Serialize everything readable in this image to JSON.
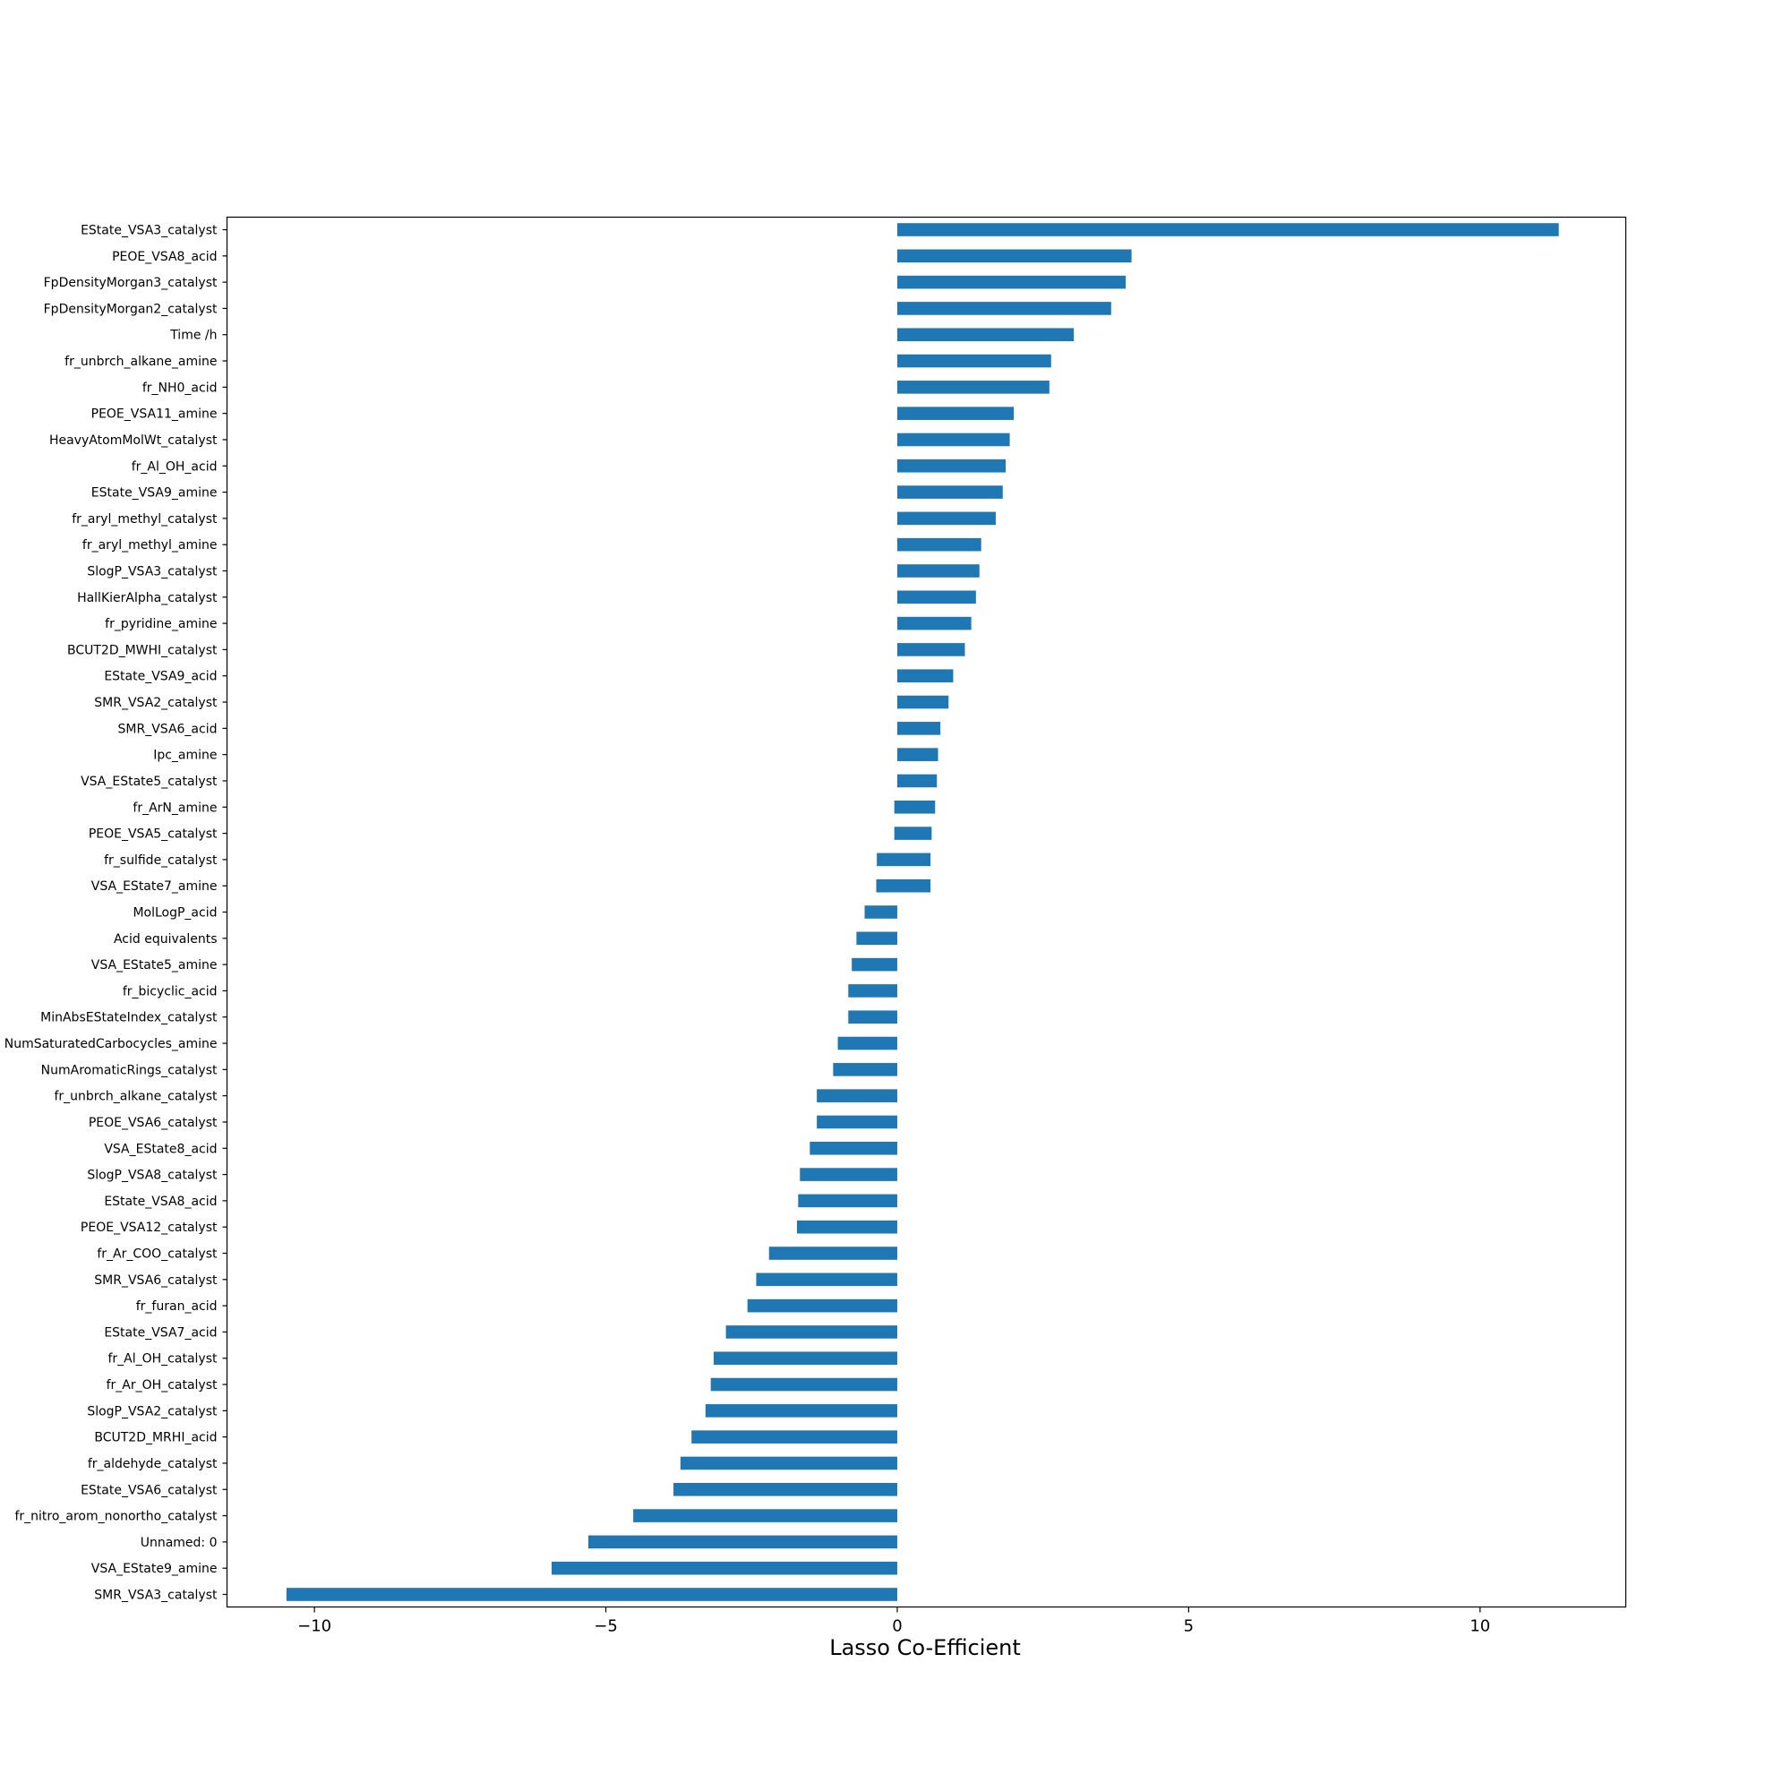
{
  "chart_data": {
    "type": "bar",
    "orientation": "horizontal",
    "title": "",
    "xlabel": "Lasso Co-Efficient",
    "ylabel": "",
    "xlim": [
      -11.5,
      12.5
    ],
    "xticks": [
      -10,
      -5,
      0,
      5,
      10
    ],
    "xtick_labels": [
      "−10",
      "−5",
      "0",
      "5",
      "10"
    ],
    "grid": false,
    "bar_color": "#1f77b4",
    "bars": [
      {
        "label": "EState_VSA3_catalyst",
        "start": 0,
        "end": 11.35
      },
      {
        "label": "PEOE_VSA8_acid",
        "start": 0,
        "end": 4.02
      },
      {
        "label": "FpDensityMorgan3_catalyst",
        "start": 0,
        "end": 3.92
      },
      {
        "label": "FpDensityMorgan2_catalyst",
        "start": 0,
        "end": 3.67
      },
      {
        "label": "Time /h",
        "start": 0,
        "end": 3.03
      },
      {
        "label": "fr_unbrch_alkane_amine",
        "start": 0,
        "end": 2.64
      },
      {
        "label": "fr_NH0_acid",
        "start": 0,
        "end": 2.61
      },
      {
        "label": "PEOE_VSA11_amine",
        "start": 0,
        "end": 2.0
      },
      {
        "label": "HeavyAtomMolWt_catalyst",
        "start": 0,
        "end": 1.93
      },
      {
        "label": "fr_Al_OH_acid",
        "start": 0,
        "end": 1.86
      },
      {
        "label": "EState_VSA9_amine",
        "start": 0,
        "end": 1.81
      },
      {
        "label": "fr_aryl_methyl_catalyst",
        "start": 0,
        "end": 1.69
      },
      {
        "label": "fr_aryl_methyl_amine",
        "start": 0,
        "end": 1.44
      },
      {
        "label": "SlogP_VSA3_catalyst",
        "start": 0,
        "end": 1.41
      },
      {
        "label": "HallKierAlpha_catalyst",
        "start": 0,
        "end": 1.35
      },
      {
        "label": "fr_pyridine_amine",
        "start": 0,
        "end": 1.27
      },
      {
        "label": "BCUT2D_MWHI_catalyst",
        "start": 0,
        "end": 1.16
      },
      {
        "label": "EState_VSA9_acid",
        "start": 0,
        "end": 0.96
      },
      {
        "label": "SMR_VSA2_catalyst",
        "start": 0,
        "end": 0.88
      },
      {
        "label": "SMR_VSA6_acid",
        "start": 0,
        "end": 0.74
      },
      {
        "label": "Ipc_amine",
        "start": 0,
        "end": 0.7
      },
      {
        "label": "VSA_EState5_catalyst",
        "start": 0,
        "end": 0.68
      },
      {
        "label": "fr_ArN_amine",
        "start": -0.05,
        "end": 0.65
      },
      {
        "label": "PEOE_VSA5_catalyst",
        "start": -0.05,
        "end": 0.59
      },
      {
        "label": "fr_sulfide_catalyst",
        "start": -0.35,
        "end": 0.57
      },
      {
        "label": "VSA_EState7_amine",
        "start": -0.36,
        "end": 0.57
      },
      {
        "label": "MolLogP_acid",
        "start": -0.56,
        "end": 0
      },
      {
        "label": "Acid equivalents",
        "start": -0.7,
        "end": 0
      },
      {
        "label": "VSA_EState5_amine",
        "start": -0.78,
        "end": 0
      },
      {
        "label": "fr_bicyclic_acid",
        "start": -0.84,
        "end": 0
      },
      {
        "label": "MinAbsEStateIndex_catalyst",
        "start": -0.84,
        "end": 0
      },
      {
        "label": "NumSaturatedCarbocycles_amine",
        "start": -1.02,
        "end": 0
      },
      {
        "label": "NumAromaticRings_catalyst",
        "start": -1.1,
        "end": 0
      },
      {
        "label": "fr_unbrch_alkane_catalyst",
        "start": -1.38,
        "end": 0
      },
      {
        "label": "PEOE_VSA6_catalyst",
        "start": -1.38,
        "end": 0
      },
      {
        "label": "VSA_EState8_acid",
        "start": -1.5,
        "end": 0
      },
      {
        "label": "SlogP_VSA8_catalyst",
        "start": -1.67,
        "end": 0
      },
      {
        "label": "EState_VSA8_acid",
        "start": -1.7,
        "end": 0
      },
      {
        "label": "PEOE_VSA12_catalyst",
        "start": -1.72,
        "end": 0
      },
      {
        "label": "fr_Ar_COO_catalyst",
        "start": -2.2,
        "end": 0
      },
      {
        "label": "SMR_VSA6_catalyst",
        "start": -2.42,
        "end": 0
      },
      {
        "label": "fr_furan_acid",
        "start": -2.57,
        "end": 0
      },
      {
        "label": "EState_VSA7_acid",
        "start": -2.94,
        "end": 0
      },
      {
        "label": "fr_Al_OH_catalyst",
        "start": -3.15,
        "end": 0
      },
      {
        "label": "fr_Ar_OH_catalyst",
        "start": -3.2,
        "end": 0
      },
      {
        "label": "SlogP_VSA2_catalyst",
        "start": -3.29,
        "end": 0
      },
      {
        "label": "BCUT2D_MRHI_acid",
        "start": -3.53,
        "end": 0
      },
      {
        "label": "fr_aldehyde_catalyst",
        "start": -3.72,
        "end": 0
      },
      {
        "label": "EState_VSA6_catalyst",
        "start": -3.84,
        "end": 0
      },
      {
        "label": "fr_nitro_arom_nonortho_catalyst",
        "start": -4.53,
        "end": 0
      },
      {
        "label": "Unnamed: 0",
        "start": -5.3,
        "end": 0
      },
      {
        "label": "VSA_EState9_amine",
        "start": -5.93,
        "end": 0
      },
      {
        "label": "SMR_VSA3_catalyst",
        "start": -10.48,
        "end": 0
      }
    ]
  }
}
